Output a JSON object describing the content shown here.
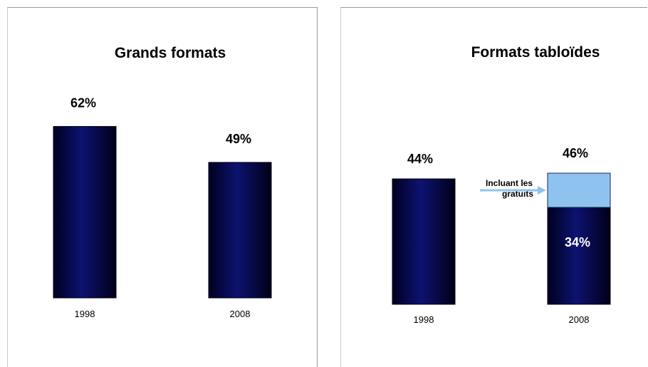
{
  "chart_data": [
    {
      "type": "bar",
      "title": "Grands formats",
      "categories": [
        "1998",
        "2008"
      ],
      "values": [
        62,
        49
      ],
      "value_labels": [
        "62%",
        "49%"
      ],
      "colors": {
        "bar": "#0d1270"
      }
    },
    {
      "type": "bar",
      "stacked": true,
      "title": "Formats tabloïdes",
      "categories": [
        "1998",
        "2008"
      ],
      "series": [
        {
          "values": [
            44,
            34
          ]
        },
        {
          "values": [
            0,
            12
          ]
        }
      ],
      "total_labels": [
        "44%",
        "46%"
      ],
      "segment_labels": [
        "",
        "34%"
      ],
      "annotation": "Incluant les gratuits",
      "annotation_lines": [
        "Incluant les",
        "gratuits"
      ],
      "colors": {
        "bar": "#0d1270",
        "segment": "#8fc3ef",
        "arrow": "#8fc3ef"
      }
    }
  ]
}
